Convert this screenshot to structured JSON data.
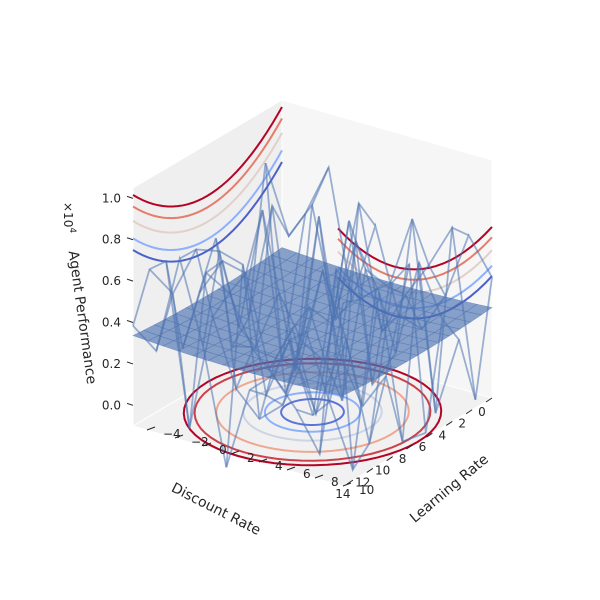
{
  "chart_data": {
    "type": "3d-surface",
    "x_axis": {
      "label": "Learning Rate",
      "ticks": [
        -4,
        -2,
        0,
        2,
        4,
        6,
        8,
        10
      ],
      "range": [
        -5,
        10
      ]
    },
    "y_axis": {
      "label": "Discount Rate",
      "ticks": [
        0,
        2,
        4,
        6,
        8,
        10,
        12,
        14
      ],
      "range": [
        0,
        15
      ]
    },
    "z_axis": {
      "label": "Agent Performance",
      "ticks": [
        "0.0",
        "0.2",
        "0.4",
        "0.6",
        "0.8",
        "1.0"
      ],
      "multiplier": "×10",
      "exponent": "4",
      "range": [
        -0.1,
        1.05
      ]
    },
    "surface": {
      "function": "z = ((x - 2.5)^2 + (y - 7.5)^2) / 10^4 * 3.3 + 0.3",
      "x_range": [
        -5,
        10
      ],
      "y_range": [
        0,
        15
      ],
      "min_value": 0.3,
      "color": "#4c72b0",
      "opacity": 0.65
    },
    "wireframe": {
      "description": "Noisy observations around the fitted surface",
      "color": "#4c72b0"
    },
    "projected_contours": [
      "bottom (z floor)",
      "back wall (x = -5)",
      "side wall (y = 0)"
    ],
    "colormap": "coolwarm",
    "pane_color": "#f2f2f2",
    "grid": false
  }
}
